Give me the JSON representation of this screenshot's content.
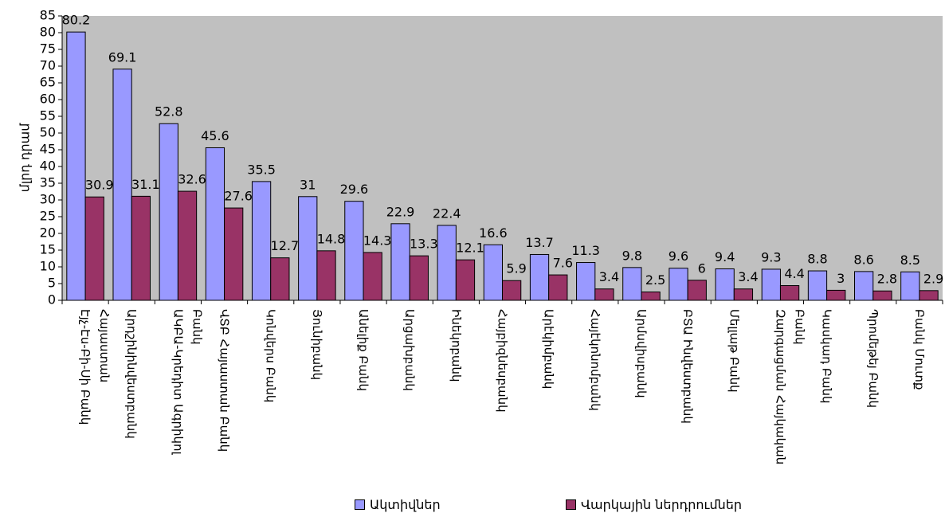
{
  "chart_data": {
    "type": "bar",
    "y_label": "մլրդ դրամ",
    "categories": [
      "Էյչ-Էս-Բի-Սի Բանկ Հայաստան",
      "Արդշինինվեստբանկ",
      "ԱԿԲԱ-Կրեդիտ Ագրիկոլ Բանկ",
      "ՎՏԲ Հայաստան Բանկ",
      "Կոնվերս Բանկ",
      "Յունիբանկ",
      "Անելիք Բանկ",
      "Արցախբանկ",
      "Ինեկոբանկ",
      "Հայբիզնեսբանկ",
      "Արէկիմբանկ",
      "Հայէկոնոմբանկ",
      "Արմսվիսբանկ",
      "ԲՏԱ Ինվեստբանկ",
      "Մելլաթ Բանկ",
      "Զարգացման Հայկական Բանկ",
      "Կասկադ Բանկ",
      "Պրոմեթեյ Բանկ",
      "Բանկ Մուտք"
    ],
    "series": [
      {
        "name": "Ակտիվներ",
        "color": "#9999ff",
        "values": [
          80.2,
          69.1,
          52.8,
          45.6,
          35.5,
          31,
          29.6,
          22.9,
          22.4,
          16.6,
          13.7,
          11.3,
          9.8,
          9.6,
          9.4,
          9.3,
          8.8,
          8.6,
          8.5
        ]
      },
      {
        "name": "Վարկային ներդրումներ",
        "color": "#993366",
        "values": [
          30.9,
          31.1,
          32.6,
          27.6,
          12.7,
          14.8,
          14.3,
          13.3,
          12.1,
          5.9,
          7.6,
          3.4,
          2.5,
          6,
          3.4,
          4.4,
          3,
          2.8,
          2.9
        ]
      }
    ],
    "ylim": [
      0,
      85
    ],
    "yticks": [
      0,
      5,
      10,
      15,
      20,
      25,
      30,
      35,
      40,
      45,
      50,
      55,
      60,
      65,
      70,
      75,
      80,
      85
    ],
    "plot_background": "#c0c0c0",
    "legend": "bottom"
  }
}
